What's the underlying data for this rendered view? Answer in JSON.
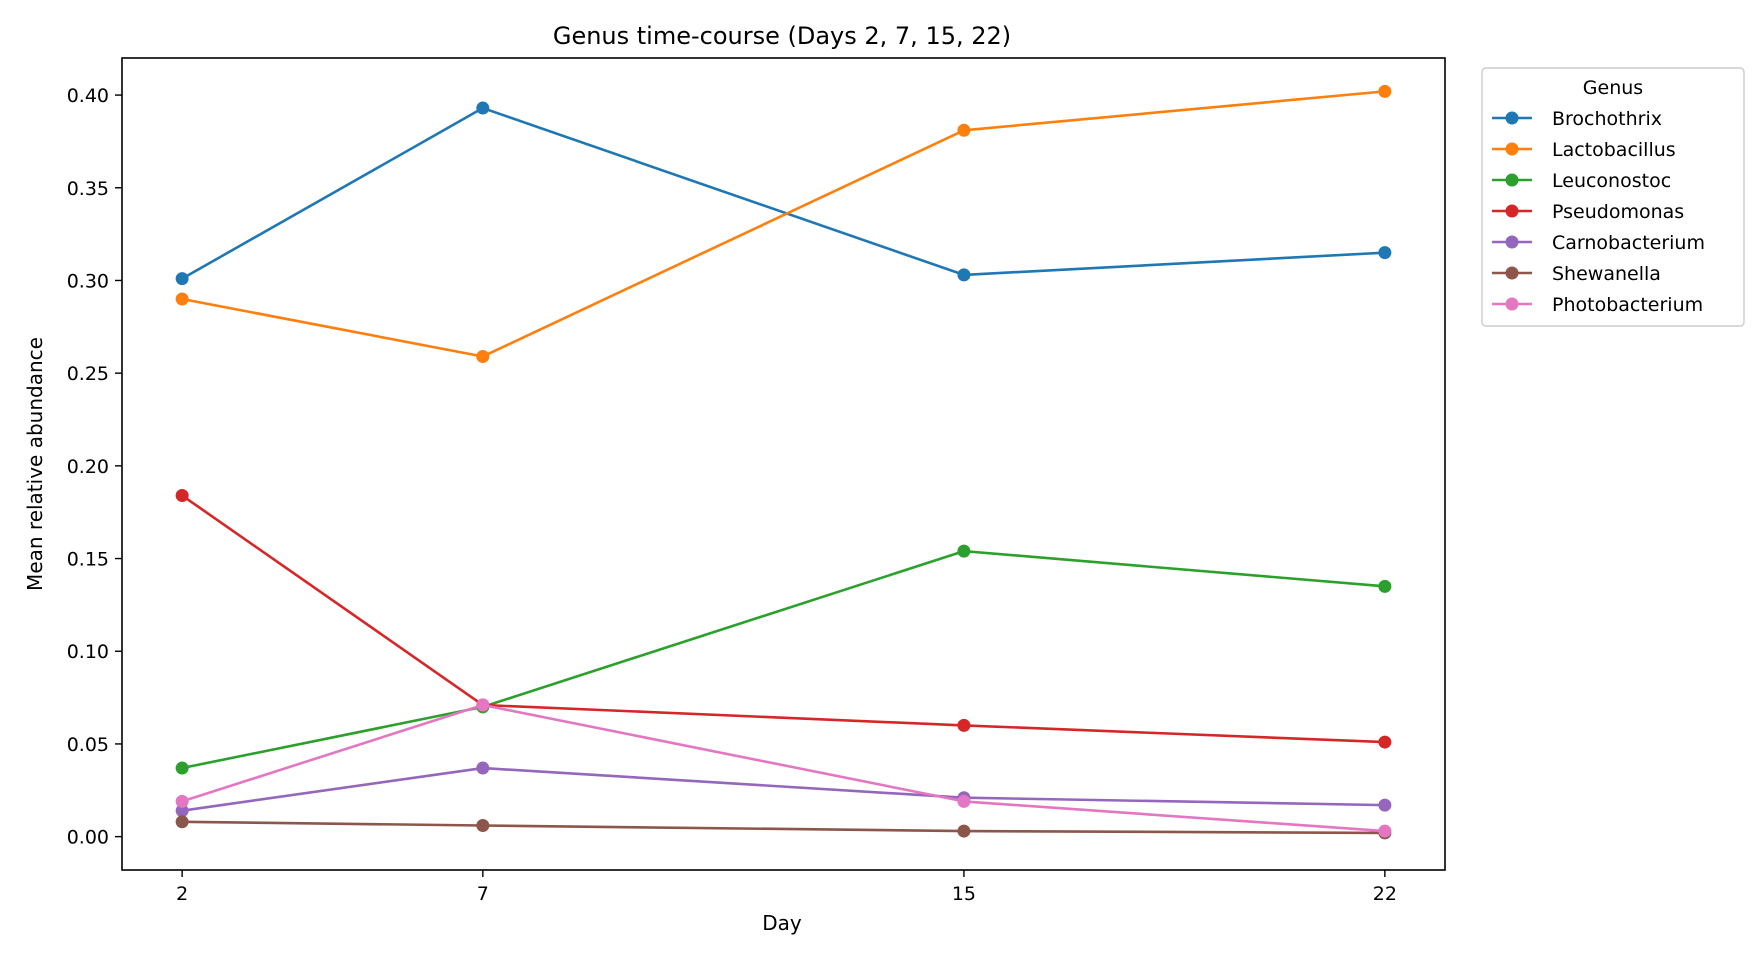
{
  "chart_data": {
    "type": "line",
    "title": "Genus time-course (Days 2, 7, 15, 22)",
    "xlabel": "Day",
    "ylabel": "Mean relative abundance",
    "x": [
      2,
      7,
      15,
      22
    ],
    "x_tick_labels": [
      "2",
      "7",
      "15",
      "22"
    ],
    "xlim": [
      1.0,
      23.0
    ],
    "ylim": [
      -0.018,
      0.42
    ],
    "y_ticks": [
      0.0,
      0.05,
      0.1,
      0.15,
      0.2,
      0.25,
      0.3,
      0.35,
      0.4
    ],
    "y_tick_labels": [
      "0.00",
      "0.05",
      "0.10",
      "0.15",
      "0.20",
      "0.25",
      "0.30",
      "0.35",
      "0.40"
    ],
    "grid": false,
    "legend": {
      "title": "Genus",
      "placement": "outside-top-right"
    },
    "series": [
      {
        "name": "Brochothrix",
        "color": "#1f77b4",
        "values": [
          0.301,
          0.393,
          0.303,
          0.315
        ]
      },
      {
        "name": "Lactobacillus",
        "color": "#ff7f0e",
        "values": [
          0.29,
          0.259,
          0.381,
          0.402
        ]
      },
      {
        "name": "Leuconostoc",
        "color": "#2ca02c",
        "values": [
          0.037,
          0.07,
          0.154,
          0.135
        ]
      },
      {
        "name": "Pseudomonas",
        "color": "#d62728",
        "values": [
          0.184,
          0.071,
          0.06,
          0.051
        ]
      },
      {
        "name": "Carnobacterium",
        "color": "#9467bd",
        "values": [
          0.014,
          0.037,
          0.021,
          0.017
        ]
      },
      {
        "name": "Shewanella",
        "color": "#8c564b",
        "values": [
          0.008,
          0.006,
          0.003,
          0.002
        ]
      },
      {
        "name": "Photobacterium",
        "color": "#e377c2",
        "values": [
          0.019,
          0.071,
          0.019,
          0.003
        ]
      }
    ]
  }
}
